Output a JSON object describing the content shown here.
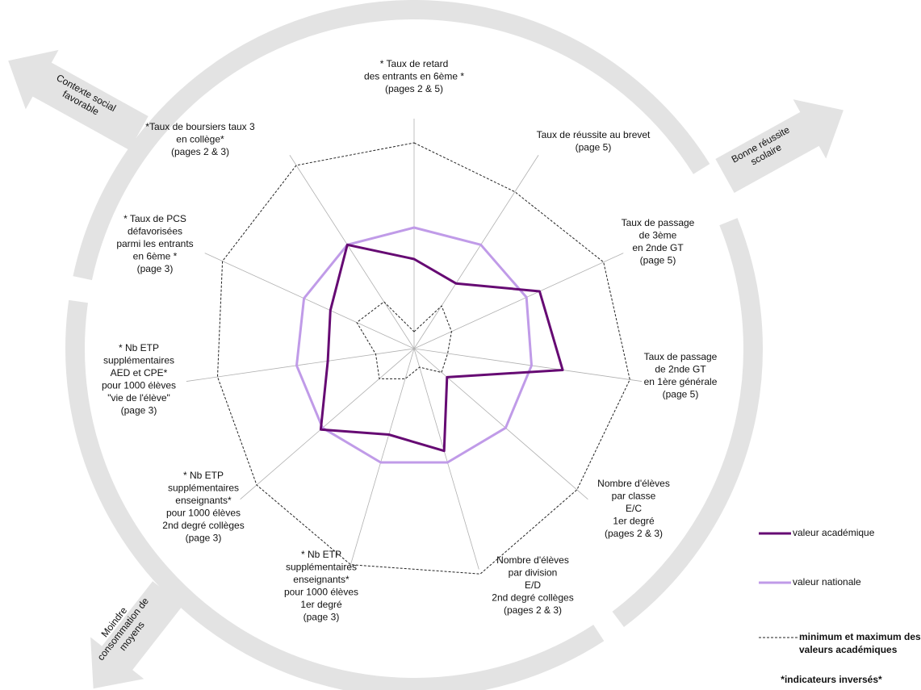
{
  "chart_data": {
    "type": "radar",
    "rlim": [
      0,
      100
    ],
    "axes": [
      [
        "* Taux de retard",
        "des entrants en 6ème *",
        "(pages 2 & 5)"
      ],
      [
        "Taux de réussite au brevet",
        "(page 5)"
      ],
      [
        "Taux de passage",
        "de 3ème",
        "en 2nde GT",
        "(page 5)"
      ],
      [
        "Taux de passage",
        "de 2nde GT",
        "en 1ère générale",
        "(page 5)"
      ],
      [
        "Nombre d'élèves",
        "par classe",
        "E/C",
        "1er degré",
        "(pages 2 & 3)"
      ],
      [
        "Nombre d'élèves",
        "par division",
        "E/D",
        "2nd degré collèges",
        "(pages 2 & 3)"
      ],
      [
        "* Nb ETP",
        "supplémentaires",
        "enseignants*",
        "pour 1000 élèves",
        "1er degré",
        "(page 3)"
      ],
      [
        "* Nb ETP",
        "supplémentaires",
        "enseignants*",
        "pour 1000 élèves",
        "2nd degré collèges",
        "(page 3)"
      ],
      [
        "* Nb ETP",
        "supplémentaires",
        "AED et CPE*",
        "pour 1000 élèves",
        "\"vie de l'élève\"",
        "(page 3)"
      ],
      [
        "* Taux de PCS",
        "défavorisées",
        "parmi les entrants",
        "en 6ème *",
        "(page 3)"
      ],
      [
        "*Taux de boursiers taux 3",
        "en collège*",
        "(pages 2 & 3)"
      ]
    ],
    "series": [
      {
        "name": [
          "valeur académique"
        ],
        "color": "#660a73",
        "dash": false,
        "values": [
          37,
          32,
          57,
          62,
          18,
          44,
          37,
          51,
          36,
          38,
          51
        ]
      },
      {
        "name": [
          "valeur nationale"
        ],
        "color": "#c09be8",
        "dash": false,
        "values": [
          50,
          51,
          51,
          49,
          50,
          49,
          49,
          50,
          49,
          50,
          51
        ]
      },
      {
        "name": [
          "minimum et maximum des",
          "valeurs académiques"
        ],
        "color": "#222222",
        "dash": true,
        "values": [
          85,
          77,
          86,
          90,
          89,
          97,
          93,
          86,
          82,
          87,
          90
        ],
        "min": [
          7,
          21,
          17,
          14,
          15,
          8,
          13,
          19,
          16,
          26,
          23
        ]
      }
    ],
    "arrows": [
      [
        "Contexte social",
        "favorable"
      ],
      [
        "Bonne réussite",
        "scolaire"
      ],
      [
        "Moindre",
        "consommation de",
        "moyens"
      ]
    ],
    "footnote": "*indicateurs inversés*"
  }
}
